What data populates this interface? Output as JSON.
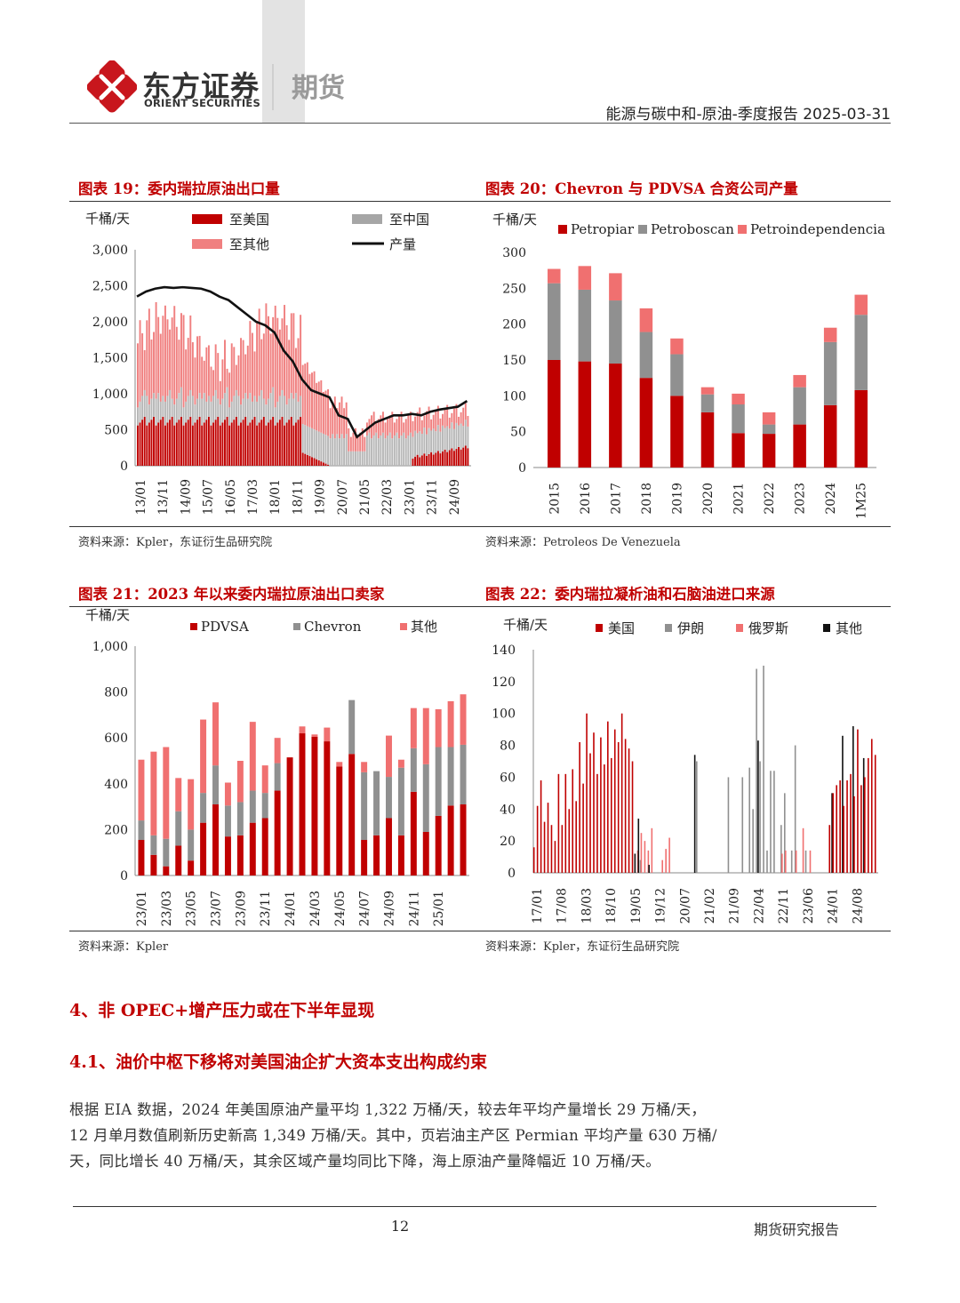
{
  "header": {
    "brand_cn": "东方证券",
    "brand_en": "ORIENT SECURITIES",
    "division": "期货",
    "report_title": "能源与碳中和-原油-季度报告 2025-03-31",
    "colors": {
      "red": "#c00000",
      "grey": "#888888"
    }
  },
  "fig19": {
    "title": "图表 19：委内瑞拉原油出口量",
    "source": "资料来源：Kpler，东证衍生品研究院"
  },
  "fig20": {
    "title": "图表 20：Chevron 与 PDVSA 合资公司产量",
    "source": "资料来源：Petroleos De Venezuela"
  },
  "fig21": {
    "title": "图表 21：2023 年以来委内瑞拉原油出口卖家",
    "source": "资料来源：Kpler"
  },
  "fig22": {
    "title": "图表 22：委内瑞拉凝析油和石脑油进口来源",
    "source": "资料来源：Kpler，东证衍生品研究院"
  },
  "section": {
    "h4": "4、非 OPEC+增产压力或在下半年显现",
    "h41": "4.1、油价中枢下移将对美国油企扩大资本支出构成约束",
    "paragraph": "根据 EIA 数据，2024 年美国原油产量平均 1,322 万桶/天，较去年平均产量增长 29 万桶/天，12 月单月数值刷新历史新高 1,349 万桶/天。其中，页岩油主产区 Permian 平均产量 630 万桶/天，同比增长 40 万桶/天，其余区域产量均同比下降，海上原油产量降幅近 10 万桶/天。"
  },
  "footer": {
    "page": "12",
    "label": "期货研究报告"
  },
  "chart_data": [
    {
      "id": "fig19",
      "type": "bar+line",
      "ylabel": "千桶/天",
      "ylim": [
        0,
        3000
      ],
      "yticks": [
        "3,000",
        "2,500",
        "2,000",
        "1,500",
        "1,000",
        "500",
        "0"
      ],
      "xticks": [
        "13/01",
        "13/11",
        "14/09",
        "15/07",
        "16/05",
        "17/03",
        "18/01",
        "18/11",
        "19/09",
        "20/07",
        "21/05",
        "22/03",
        "23/01",
        "23/11",
        "24/09"
      ],
      "legend": [
        "至美国",
        "至中国",
        "至其他",
        "产量"
      ],
      "colors": {
        "至美国": "#c00000",
        "至中国": "#a6a6a6",
        "至其他": "#f08080",
        "产量": "#111111"
      },
      "production_line": {
        "x": [
          0,
          4,
          8,
          12,
          16,
          20,
          24,
          28,
          32,
          36,
          40,
          44,
          48,
          52,
          56,
          60,
          64,
          68,
          72,
          76,
          80,
          84,
          88,
          92,
          96,
          100,
          104,
          108,
          112,
          116,
          120,
          124,
          128,
          132,
          136,
          140,
          144
        ],
        "values": [
          2350,
          2420,
          2460,
          2480,
          2470,
          2480,
          2470,
          2460,
          2420,
          2350,
          2300,
          2200,
          2100,
          2000,
          1950,
          1850,
          1600,
          1450,
          1200,
          1050,
          1000,
          950,
          700,
          650,
          400,
          500,
          600,
          650,
          700,
          700,
          720,
          700,
          750,
          780,
          800,
          820,
          900
        ]
      },
      "monthly_exports_approx": {
        "months": 145,
        "total_pattern": "1,700–2,300 (2013–2018) → ~1,000 (2019) → ~500 (2020) → 600–800 (2021–2025)",
        "to_US": "~650 until 2019/01, ~0 2019–2022, 100–250 after 2023",
        "to_China": "~200–400 until 2019, 300–600 2019–2023",
        "to_other": "remainder"
      }
    },
    {
      "id": "fig20",
      "type": "stacked-bar",
      "ylabel": "千桶/天",
      "ylim": [
        0,
        300
      ],
      "yticks": [
        "300",
        "250",
        "200",
        "150",
        "100",
        "50",
        "0"
      ],
      "categories": [
        "2015",
        "2016",
        "2017",
        "2018",
        "2019",
        "2020",
        "2021",
        "2022",
        "2023",
        "2024",
        "1M25"
      ],
      "series": [
        {
          "name": "Petropiar",
          "color": "#c00000",
          "values": [
            150,
            148,
            145,
            125,
            100,
            77,
            48,
            47,
            60,
            87,
            108
          ]
        },
        {
          "name": "Petroboscan",
          "color": "#909090",
          "values": [
            107,
            100,
            88,
            64,
            58,
            25,
            40,
            13,
            52,
            88,
            105
          ]
        },
        {
          "name": "Petroindependencia",
          "color": "#f07070",
          "values": [
            20,
            33,
            38,
            33,
            22,
            10,
            15,
            17,
            17,
            20,
            28
          ]
        }
      ]
    },
    {
      "id": "fig21",
      "type": "stacked-bar",
      "ylabel": "千桶/天",
      "ylim": [
        0,
        1000
      ],
      "yticks": [
        "1,000",
        "800",
        "600",
        "400",
        "200",
        "0"
      ],
      "xticks": [
        "23/01",
        "23/03",
        "23/05",
        "23/07",
        "23/09",
        "23/11",
        "24/01",
        "24/03",
        "24/05",
        "24/07",
        "24/09",
        "24/11",
        "25/01"
      ],
      "categories": [
        "23/01",
        "23/02",
        "23/03",
        "23/04",
        "23/05",
        "23/06",
        "23/07",
        "23/08",
        "23/09",
        "23/10",
        "23/11",
        "23/12",
        "24/01",
        "24/02",
        "24/03",
        "24/04",
        "24/05",
        "24/06",
        "24/07",
        "24/08",
        "24/09",
        "24/10",
        "24/11",
        "24/12",
        "25/01",
        "25/02",
        "25/03"
      ],
      "series": [
        {
          "name": "PDVSA",
          "color": "#c00000",
          "values": [
            155,
            90,
            40,
            130,
            65,
            230,
            310,
            170,
            175,
            230,
            250,
            370,
            515,
            620,
            605,
            585,
            475,
            530,
            155,
            175,
            250,
            175,
            365,
            190,
            260,
            305,
            310
          ]
        },
        {
          "name": "Chevron",
          "color": "#909090",
          "values": [
            85,
            85,
            120,
            150,
            135,
            130,
            170,
            135,
            145,
            140,
            110,
            120,
            0,
            0,
            0,
            0,
            0,
            235,
            295,
            280,
            180,
            295,
            190,
            295,
            300,
            255,
            260
          ]
        },
        {
          "name": "其他",
          "color": "#f07070",
          "values": [
            265,
            365,
            400,
            145,
            220,
            320,
            275,
            100,
            180,
            300,
            120,
            110,
            0,
            30,
            10,
            60,
            20,
            0,
            45,
            0,
            180,
            35,
            175,
            245,
            165,
            200,
            220
          ]
        }
      ]
    },
    {
      "id": "fig22",
      "type": "grouped-bar",
      "ylabel": "千桶/天",
      "ylim": [
        0,
        140
      ],
      "yticks": [
        "140",
        "120",
        "100",
        "80",
        "60",
        "40",
        "20",
        "0"
      ],
      "xticks": [
        "17/01",
        "17/08",
        "18/03",
        "18/10",
        "19/05",
        "19/12",
        "20/07",
        "21/02",
        "21/09",
        "22/04",
        "22/11",
        "23/06",
        "24/01",
        "24/08"
      ],
      "legend": [
        "美国",
        "伊朗",
        "俄罗斯",
        "其他"
      ],
      "colors": {
        "美国": "#c00000",
        "伊朗": "#909090",
        "俄罗斯": "#f07070",
        "其他": "#111111"
      },
      "series": [
        {
          "name": "美国",
          "values": [
            16,
            42,
            22,
            58,
            32,
            44,
            30,
            44,
            20,
            62,
            30,
            62,
            40,
            65,
            45,
            82,
            56,
            100,
            75,
            88,
            62,
            85,
            68,
            95,
            72,
            90,
            82,
            100,
            84,
            100,
            78,
            76,
            70,
            0,
            0,
            0,
            0,
            0,
            0,
            0,
            0,
            0,
            0,
            0,
            0,
            0,
            0,
            0,
            0,
            0,
            0,
            0,
            0,
            0,
            0,
            0,
            0,
            0,
            0,
            0,
            0,
            0,
            0,
            0,
            0,
            0,
            0,
            0,
            0,
            0,
            0,
            0,
            0,
            0,
            0,
            0,
            0,
            0,
            0,
            0,
            0,
            0,
            0,
            0,
            0,
            0,
            0,
            0,
            0,
            0,
            0,
            0,
            0,
            0,
            0,
            0,
            0,
            0,
            0,
            0,
            0,
            0,
            0,
            0,
            0,
            0,
            0,
            0,
            0,
            0,
            0,
            0,
            0,
            0,
            0,
            0,
            0,
            0,
            0,
            0,
            0,
            0,
            0,
            0,
            0,
            0,
            0,
            0,
            0,
            0,
            0,
            0,
            0,
            0,
            0,
            0,
            0,
            0,
            0,
            0,
            0,
            0,
            0,
            0,
            0,
            0,
            0,
            0,
            0,
            0,
            0,
            0,
            0,
            0,
            0,
            0,
            0,
            0,
            0,
            0,
            0,
            0,
            0,
            15,
            0,
            0,
            14,
            0,
            0,
            0,
            0,
            0,
            14,
            28,
            30,
            22,
            40,
            32,
            55,
            42,
            56,
            50,
            42,
            58,
            62,
            48,
            56,
            36,
            60,
            80,
            55,
            60,
            30,
            72,
            56,
            84,
            74,
            72,
            70
          ]
        },
        {
          "name": "伊朗",
          "values": []
        },
        {
          "name": "俄罗斯",
          "values": []
        },
        {
          "name": "其他",
          "values": []
        }
      ],
      "note": "Monthly bars 2017/01–2025/02; US dominant 2017–2019 and 2023/10 onward; Iran and Russia intermittent 2020–2023; 'other' sparse."
    }
  ]
}
